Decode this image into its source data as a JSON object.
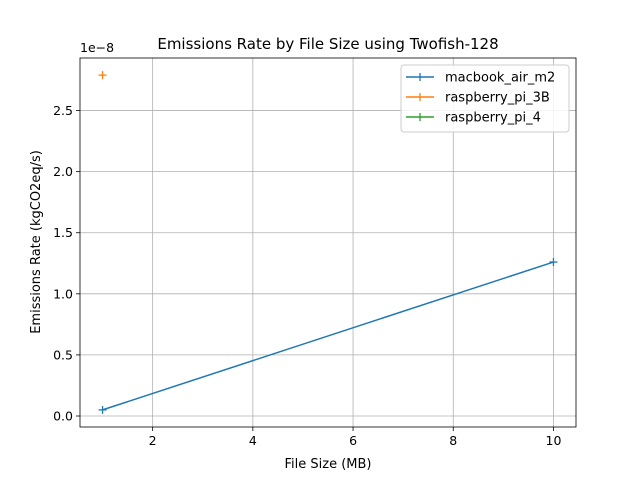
{
  "chart_data": {
    "type": "line",
    "title": "Emissions Rate by File Size using Twofish-128",
    "xlabel": "File Size (MB)",
    "ylabel": "Emissions Rate (kgCO2eq/s)",
    "y_offset_label": "1e−8",
    "y_scale": 1e-08,
    "xlim": [
      0.55,
      10.45
    ],
    "ylim": [
      -9e-10,
      2.93e-08
    ],
    "xticks": [
      2,
      4,
      6,
      8,
      10
    ],
    "xtick_labels": [
      "2",
      "4",
      "6",
      "8",
      "10"
    ],
    "yticks": [
      0,
      5e-09,
      1e-08,
      1.5e-08,
      2e-08,
      2.5e-08
    ],
    "ytick_labels": [
      "0.0",
      "0.5",
      "1.0",
      "1.5",
      "2.0",
      "2.5"
    ],
    "grid": true,
    "legend_position": "top-right",
    "marker": "+",
    "series": [
      {
        "name": "macbook_air_m2",
        "color": "#1f77b4",
        "x": [
          1,
          10
        ],
        "y": [
          5e-10,
          1.26e-08
        ]
      },
      {
        "name": "raspberry_pi_3B",
        "color": "#ff7f0e",
        "x": [
          1
        ],
        "y": [
          2.79e-08
        ]
      },
      {
        "name": "raspberry_pi_4",
        "color": "#2ca02c",
        "x": [],
        "y": []
      }
    ]
  }
}
